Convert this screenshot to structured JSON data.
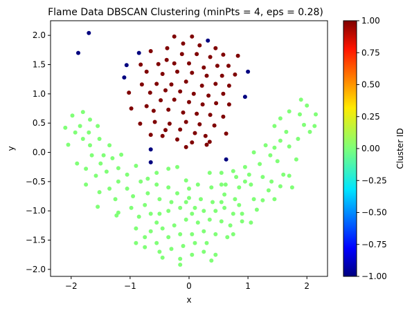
{
  "chart_data": {
    "type": "scatter",
    "title": "Flame Data DBSCAN Clustering (minPts = 4, eps = 0.28)",
    "xlabel": "x",
    "ylabel": "y",
    "xlim": [
      -2.35,
      2.35
    ],
    "ylim": [
      -2.12,
      2.25
    ],
    "xticks": [
      -2,
      -1,
      0,
      1,
      2
    ],
    "xtick_labels": [
      "−2",
      "−1",
      "0",
      "1",
      "2"
    ],
    "yticks": [
      -2.0,
      -1.5,
      -1.0,
      -0.5,
      0.0,
      0.5,
      1.0,
      1.5,
      2.0
    ],
    "ytick_labels": [
      "−2.0",
      "−1.5",
      "−1.0",
      "−0.5",
      "0.0",
      "0.5",
      "1.0",
      "1.5",
      "2.0"
    ],
    "grid": false,
    "colorbar": {
      "label": "Cluster ID",
      "colormap": "jet",
      "range": [
        -1.0,
        1.0
      ],
      "ticks": [
        1.0,
        0.75,
        0.5,
        0.25,
        0.0,
        -0.25,
        -0.5,
        -0.75,
        -1.0
      ],
      "tick_labels": [
        "1.00",
        "0.75",
        "0.50",
        "0.25",
        "0.00",
        "−0.25",
        "−0.50",
        "−0.75",
        "−1.00"
      ]
    },
    "series": [
      {
        "cluster": -1,
        "color": "#00007f",
        "points": [
          [
            -1.88,
            1.7
          ],
          [
            -1.7,
            2.04
          ],
          [
            -1.06,
            1.49
          ],
          [
            -1.1,
            1.28
          ],
          [
            -0.85,
            1.7
          ],
          [
            0.32,
            1.91
          ],
          [
            1.0,
            1.38
          ],
          [
            0.95,
            0.95
          ],
          [
            -0.65,
            0.05
          ],
          [
            -0.65,
            -0.17
          ],
          [
            0.63,
            -0.12
          ]
        ]
      },
      {
        "cluster": 1,
        "color": "#7f0000",
        "points": [
          [
            -0.25,
            1.98
          ],
          [
            0.05,
            1.98
          ],
          [
            -0.65,
            1.73
          ],
          [
            -0.37,
            1.78
          ],
          [
            -0.1,
            1.86
          ],
          [
            0.18,
            1.83
          ],
          [
            0.45,
            1.78
          ],
          [
            -0.38,
            1.58
          ],
          [
            -0.12,
            1.68
          ],
          [
            0.13,
            1.68
          ],
          [
            0.36,
            1.63
          ],
          [
            0.58,
            1.67
          ],
          [
            0.83,
            1.65
          ],
          [
            -0.82,
            1.5
          ],
          [
            -0.52,
            1.51
          ],
          [
            -0.25,
            1.52
          ],
          [
            0.0,
            1.52
          ],
          [
            0.25,
            1.45
          ],
          [
            0.48,
            1.48
          ],
          [
            0.67,
            1.48
          ],
          [
            -0.72,
            1.38
          ],
          [
            -0.45,
            1.34
          ],
          [
            -0.2,
            1.38
          ],
          [
            0.05,
            1.36
          ],
          [
            0.3,
            1.31
          ],
          [
            0.56,
            1.31
          ],
          [
            0.78,
            1.33
          ],
          [
            -1.02,
            1.02
          ],
          [
            -0.8,
            1.16
          ],
          [
            -0.55,
            1.17
          ],
          [
            -0.3,
            1.16
          ],
          [
            -0.05,
            1.21
          ],
          [
            0.22,
            1.14
          ],
          [
            0.45,
            1.17
          ],
          [
            0.68,
            1.14
          ],
          [
            -0.66,
            1.02
          ],
          [
            -0.4,
            1.06
          ],
          [
            -0.15,
            1.04
          ],
          [
            0.08,
            1.0
          ],
          [
            0.33,
            0.97
          ],
          [
            0.58,
            1.0
          ],
          [
            -0.98,
            0.75
          ],
          [
            -0.72,
            0.79
          ],
          [
            -0.48,
            0.89
          ],
          [
            -0.25,
            0.9
          ],
          [
            0.0,
            0.86
          ],
          [
            0.23,
            0.82
          ],
          [
            0.46,
            0.84
          ],
          [
            0.68,
            0.82
          ],
          [
            -0.6,
            0.71
          ],
          [
            -0.35,
            0.73
          ],
          [
            -0.1,
            0.68
          ],
          [
            0.13,
            0.66
          ],
          [
            0.36,
            0.64
          ],
          [
            0.58,
            0.61
          ],
          [
            -0.83,
            0.49
          ],
          [
            -0.58,
            0.52
          ],
          [
            -0.33,
            0.49
          ],
          [
            -0.05,
            0.52
          ],
          [
            0.18,
            0.48
          ],
          [
            0.43,
            0.46
          ],
          [
            -0.4,
            0.38
          ],
          [
            -0.15,
            0.39
          ],
          [
            0.1,
            0.33
          ],
          [
            0.63,
            0.32
          ],
          [
            -0.45,
            0.28
          ],
          [
            -0.65,
            0.3
          ],
          [
            0.28,
            0.28
          ],
          [
            -0.2,
            0.22
          ],
          [
            0.05,
            0.17
          ],
          [
            0.35,
            0.18
          ],
          [
            0.3,
            0.13
          ],
          [
            -0.05,
            0.09
          ]
        ]
      },
      {
        "cluster": 0,
        "color": "#80ff77",
        "points": [
          [
            -2.1,
            0.42
          ],
          [
            -1.98,
            0.63
          ],
          [
            -1.93,
            0.34
          ],
          [
            -2.05,
            0.13
          ],
          [
            -1.8,
            0.69
          ],
          [
            -1.85,
            0.45
          ],
          [
            -1.8,
            0.23
          ],
          [
            -1.9,
            -0.19
          ],
          [
            -1.68,
            0.56
          ],
          [
            -1.7,
            0.34
          ],
          [
            -1.68,
            0.12
          ],
          [
            -1.55,
            0.45
          ],
          [
            -1.52,
            0.23
          ],
          [
            -1.65,
            -0.05
          ],
          [
            -1.45,
            -0.05
          ],
          [
            -1.5,
            -0.19
          ],
          [
            -1.75,
            -0.28
          ],
          [
            -1.58,
            -0.4
          ],
          [
            -1.35,
            0.12
          ],
          [
            -1.3,
            -0.1
          ],
          [
            -1.4,
            -0.33
          ],
          [
            -1.15,
            -0.04
          ],
          [
            -1.2,
            -0.27
          ],
          [
            -1.2,
            -0.5
          ],
          [
            -1.35,
            -0.62
          ],
          [
            -1.75,
            -0.55
          ],
          [
            -1.52,
            -0.68
          ],
          [
            -1.55,
            -0.93
          ],
          [
            -1.05,
            -0.38
          ],
          [
            -0.9,
            -0.23
          ],
          [
            -1.05,
            -0.62
          ],
          [
            -0.82,
            -0.5
          ],
          [
            -1.25,
            -0.8
          ],
          [
            -0.95,
            -0.75
          ],
          [
            -0.7,
            -0.7
          ],
          [
            -1.2,
            -1.03
          ],
          [
            -0.98,
            -0.95
          ],
          [
            -0.75,
            -0.9
          ],
          [
            -1.23,
            -1.08
          ],
          [
            -0.55,
            -0.35
          ],
          [
            -0.35,
            -0.28
          ],
          [
            -0.2,
            -0.25
          ],
          [
            -0.05,
            -0.48
          ],
          [
            0.15,
            -0.55
          ],
          [
            0.35,
            -0.35
          ],
          [
            0.55,
            -0.35
          ],
          [
            0.75,
            -0.32
          ],
          [
            0.95,
            -0.25
          ],
          [
            1.1,
            0.0
          ],
          [
            1.3,
            0.12
          ],
          [
            1.45,
            0.08
          ],
          [
            1.55,
            0.2
          ],
          [
            1.7,
            0.1
          ],
          [
            1.85,
            0.23
          ],
          [
            1.95,
            0.47
          ],
          [
            2.05,
            0.35
          ],
          [
            1.65,
            0.35
          ],
          [
            1.38,
            -0.05
          ],
          [
            1.5,
            -0.15
          ],
          [
            1.2,
            -0.2
          ],
          [
            1.25,
            -0.42
          ],
          [
            1.4,
            -0.5
          ],
          [
            1.55,
            -0.58
          ],
          [
            1.7,
            -0.4
          ],
          [
            1.75,
            -0.6
          ],
          [
            1.82,
            -0.12
          ],
          [
            1.7,
            0.7
          ],
          [
            1.88,
            0.65
          ],
          [
            1.9,
            0.9
          ],
          [
            2.0,
            0.8
          ],
          [
            2.15,
            0.65
          ],
          [
            2.13,
            0.45
          ],
          [
            1.55,
            0.58
          ],
          [
            1.45,
            0.45
          ],
          [
            1.6,
            -0.38
          ],
          [
            1.05,
            -0.55
          ],
          [
            0.95,
            -0.5
          ],
          [
            0.85,
            -0.6
          ],
          [
            0.78,
            -0.8
          ],
          [
            0.6,
            -0.72
          ],
          [
            0.55,
            -0.55
          ],
          [
            0.38,
            -0.6
          ],
          [
            0.4,
            -0.85
          ],
          [
            0.2,
            -0.8
          ],
          [
            0.0,
            -0.78
          ],
          [
            -0.2,
            -0.7
          ],
          [
            -0.35,
            -0.6
          ],
          [
            -0.5,
            -0.8
          ],
          [
            -0.65,
            -1.05
          ],
          [
            -0.55,
            -1.2
          ],
          [
            -0.35,
            -1.0
          ],
          [
            -0.15,
            -0.95
          ],
          [
            0.05,
            -1.05
          ],
          [
            0.25,
            -1.0
          ],
          [
            0.45,
            -1.0
          ],
          [
            0.6,
            -0.95
          ],
          [
            0.75,
            -1.05
          ],
          [
            0.9,
            -1.05
          ],
          [
            1.1,
            -0.8
          ],
          [
            1.15,
            -0.98
          ],
          [
            1.05,
            -1.2
          ],
          [
            0.9,
            -1.18
          ],
          [
            0.7,
            -1.25
          ],
          [
            0.55,
            -1.18
          ],
          [
            0.35,
            -1.15
          ],
          [
            0.15,
            -1.2
          ],
          [
            -0.05,
            -1.15
          ],
          [
            -0.25,
            -1.25
          ],
          [
            -0.45,
            -1.3
          ],
          [
            -0.65,
            -1.35
          ],
          [
            -0.9,
            -1.3
          ],
          [
            -0.85,
            -1.1
          ],
          [
            -0.75,
            -1.45
          ],
          [
            -0.55,
            -1.55
          ],
          [
            -0.35,
            -1.45
          ],
          [
            -0.15,
            -1.4
          ],
          [
            0.05,
            -1.4
          ],
          [
            0.25,
            -1.35
          ],
          [
            0.45,
            -1.4
          ],
          [
            0.65,
            -1.45
          ],
          [
            0.75,
            -1.4
          ],
          [
            0.3,
            -1.55
          ],
          [
            0.1,
            -1.55
          ],
          [
            -0.1,
            -1.6
          ],
          [
            -0.3,
            -1.65
          ],
          [
            -0.5,
            -1.7
          ],
          [
            -0.75,
            -1.62
          ],
          [
            -0.9,
            -1.55
          ],
          [
            -0.45,
            -1.8
          ],
          [
            -0.15,
            -1.82
          ],
          [
            0.05,
            -1.75
          ],
          [
            0.25,
            -1.7
          ],
          [
            0.45,
            -1.75
          ],
          [
            -0.15,
            -1.92
          ],
          [
            0.38,
            -1.85
          ],
          [
            -0.7,
            -0.45
          ],
          [
            -0.55,
            -0.55
          ],
          [
            0.0,
            -0.62
          ],
          [
            0.62,
            -0.55
          ],
          [
            0.8,
            -0.42
          ],
          [
            1.35,
            -0.65
          ],
          [
            1.45,
            -0.8
          ],
          [
            1.25,
            -0.82
          ],
          [
            1.02,
            -0.38
          ],
          [
            -0.05,
            -0.85
          ],
          [
            0.1,
            -0.95
          ],
          [
            0.55,
            -0.85
          ],
          [
            -0.3,
            -0.85
          ],
          [
            -0.5,
            -1.05
          ],
          [
            0.85,
            -0.9
          ]
        ]
      }
    ]
  }
}
